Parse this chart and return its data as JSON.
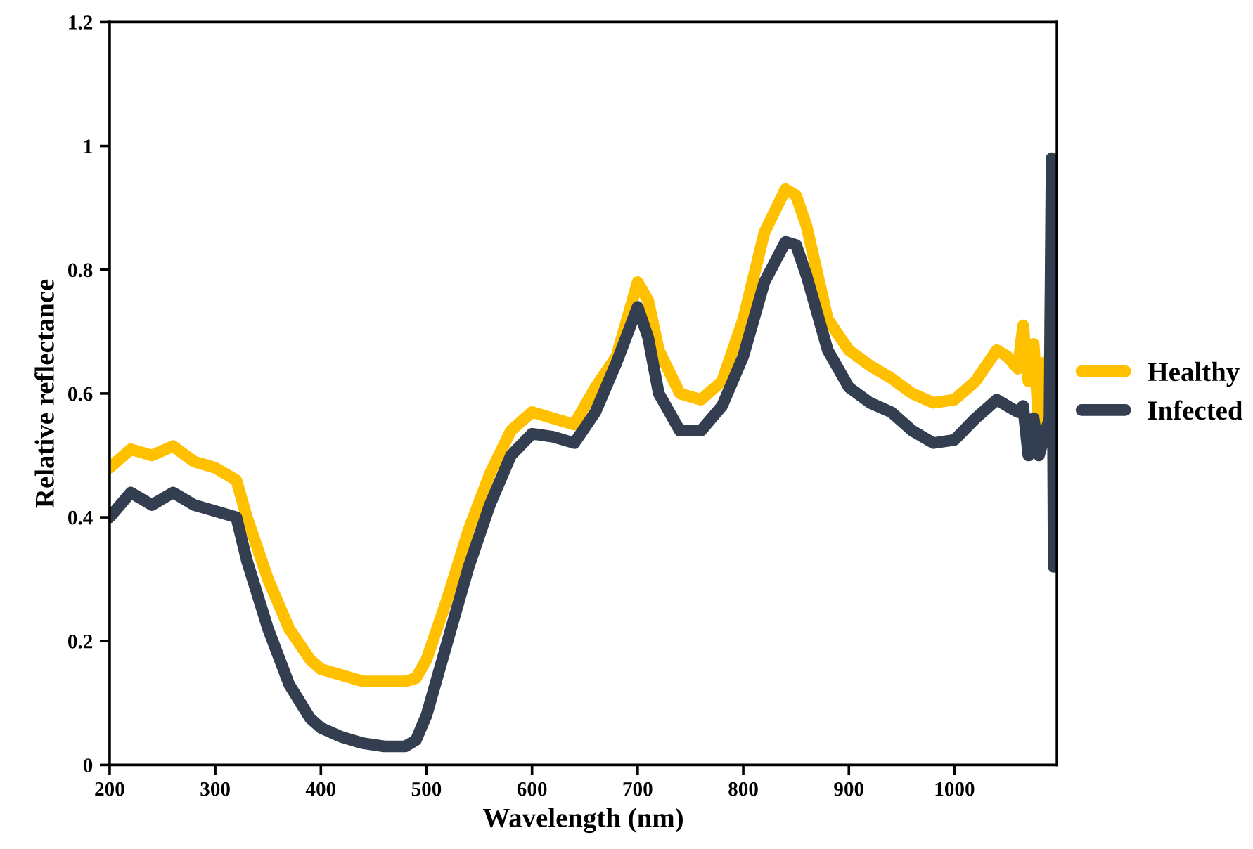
{
  "chart_data": {
    "type": "line",
    "xlabel": "Wavelength (nm)",
    "ylabel": "Relative reflectance",
    "xlim": [
      200,
      1097
    ],
    "xticks": [
      200,
      300,
      400,
      500,
      600,
      700,
      800,
      900,
      1000
    ],
    "ylim": [
      0,
      1.2
    ],
    "yticks": [
      0,
      0.2,
      0.4,
      0.6,
      0.8,
      1,
      1.2
    ],
    "grid": false,
    "legend": "right",
    "marker": "none",
    "line_style": "solid",
    "series": [
      {
        "name": "Healthy",
        "color": "#ffc000",
        "x": [
          200,
          220,
          240,
          260,
          280,
          300,
          320,
          330,
          350,
          370,
          390,
          400,
          420,
          440,
          460,
          480,
          490,
          500,
          520,
          540,
          560,
          580,
          600,
          620,
          640,
          660,
          680,
          700,
          710,
          720,
          740,
          760,
          780,
          800,
          820,
          840,
          850,
          860,
          880,
          900,
          920,
          940,
          960,
          980,
          1000,
          1020,
          1040,
          1050,
          1060,
          1065,
          1070,
          1075,
          1080,
          1085,
          1090,
          1093
        ],
        "values": [
          0.48,
          0.51,
          0.5,
          0.515,
          0.49,
          0.48,
          0.46,
          0.4,
          0.3,
          0.22,
          0.17,
          0.155,
          0.145,
          0.135,
          0.135,
          0.135,
          0.14,
          0.17,
          0.27,
          0.38,
          0.47,
          0.54,
          0.57,
          0.56,
          0.55,
          0.61,
          0.66,
          0.78,
          0.75,
          0.67,
          0.6,
          0.59,
          0.62,
          0.72,
          0.86,
          0.93,
          0.92,
          0.87,
          0.72,
          0.67,
          0.645,
          0.625,
          0.6,
          0.585,
          0.59,
          0.62,
          0.67,
          0.66,
          0.64,
          0.71,
          0.62,
          0.68,
          0.55,
          0.65,
          0.62,
          0.98
        ]
      },
      {
        "name": "Infected",
        "color": "#333f50",
        "x": [
          200,
          220,
          240,
          260,
          280,
          300,
          320,
          330,
          350,
          370,
          390,
          400,
          420,
          440,
          460,
          480,
          490,
          500,
          520,
          540,
          560,
          580,
          600,
          620,
          640,
          660,
          680,
          700,
          710,
          720,
          740,
          760,
          780,
          800,
          820,
          840,
          850,
          860,
          880,
          900,
          920,
          940,
          960,
          980,
          1000,
          1020,
          1040,
          1050,
          1060,
          1065,
          1070,
          1075,
          1080,
          1090,
          1092,
          1094
        ],
        "values": [
          0.4,
          0.44,
          0.42,
          0.44,
          0.42,
          0.41,
          0.4,
          0.33,
          0.22,
          0.13,
          0.075,
          0.06,
          0.045,
          0.035,
          0.03,
          0.03,
          0.04,
          0.08,
          0.2,
          0.32,
          0.42,
          0.5,
          0.535,
          0.53,
          0.52,
          0.57,
          0.65,
          0.74,
          0.69,
          0.6,
          0.54,
          0.54,
          0.58,
          0.66,
          0.78,
          0.845,
          0.84,
          0.79,
          0.67,
          0.61,
          0.585,
          0.57,
          0.54,
          0.52,
          0.525,
          0.56,
          0.59,
          0.58,
          0.57,
          0.58,
          0.5,
          0.56,
          0.5,
          0.56,
          0.98,
          0.32
        ]
      }
    ]
  }
}
